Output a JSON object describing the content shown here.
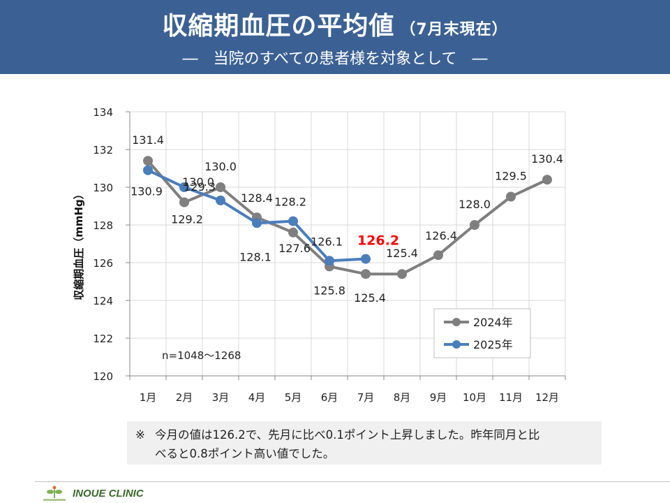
{
  "header": {
    "title_main": "収縮期血圧の平均値",
    "title_sub": "（7月末現在）",
    "subtitle": "―　当院のすべての患者様を対象として　―"
  },
  "chart_data": {
    "type": "line",
    "categories": [
      "1月",
      "2月",
      "3月",
      "4月",
      "5月",
      "6月",
      "7月",
      "8月",
      "9月",
      "10月",
      "11月",
      "12月"
    ],
    "series": [
      {
        "name": "2024年",
        "color": "#7f7f7f",
        "values": [
          131.4,
          129.2,
          130.0,
          128.4,
          127.6,
          125.8,
          125.4,
          125.4,
          126.4,
          128.0,
          129.5,
          130.4
        ]
      },
      {
        "name": "2025年",
        "color": "#4a7ebb",
        "values": [
          130.9,
          130.0,
          129.3,
          128.1,
          128.2,
          126.1,
          126.2,
          null,
          null,
          null,
          null,
          null
        ]
      }
    ],
    "ylabel": "収縮期血圧（mmHg）",
    "ylim": [
      120,
      134
    ],
    "yticks": [
      "120",
      "122",
      "124",
      "126",
      "128",
      "130",
      "132",
      "134"
    ],
    "grid": true,
    "legend_position": "bottom-right",
    "annotation": "n=1048～1268",
    "highlight": {
      "label": "126.2",
      "color": "#ff0000"
    }
  },
  "note": {
    "mark": "※",
    "line1": "今月の値は126.2で、先月に比べ0.1ポイント上昇しました。昨年同月と比",
    "line2": "べると0.8ポイント高い値でした。"
  },
  "footer": {
    "clinic_name": "INOUE CLINIC",
    "logo_icon": "clover-logo-icon"
  }
}
